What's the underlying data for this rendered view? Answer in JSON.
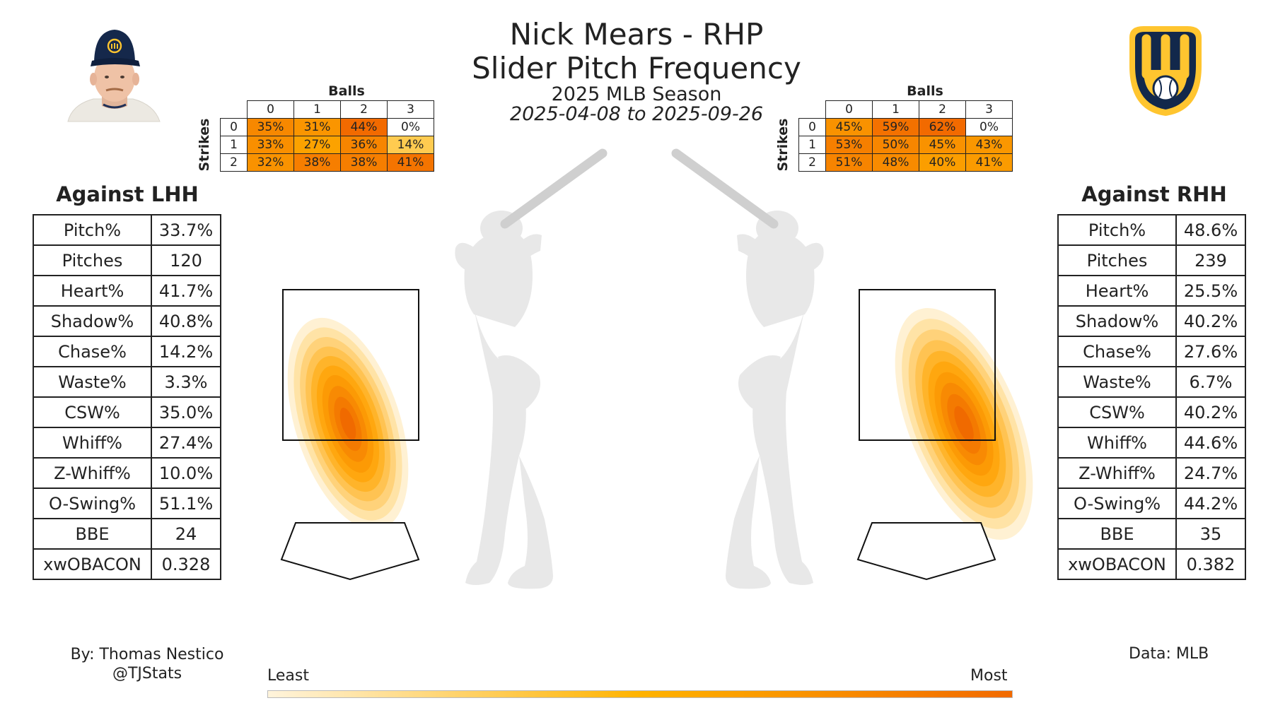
{
  "header": {
    "title_line1": "Nick Mears - RHP",
    "title_line2": "Slider Pitch Frequency",
    "season": "2025 MLB Season",
    "date_range": "2025-04-08 to 2025-09-26"
  },
  "colors": {
    "team_navy": "#12284b",
    "team_gold": "#ffc52f",
    "heat_low": "#fff4dc",
    "heat_mid": "#ffb300",
    "heat_high": "#f26a00",
    "silhouette": "#e8e8e8",
    "bat": "#cccccc"
  },
  "lhh": {
    "header": "Against LHH",
    "stats": [
      {
        "label": "Pitch%",
        "value": "33.7%"
      },
      {
        "label": "Pitches",
        "value": "120"
      },
      {
        "label": "Heart%",
        "value": "41.7%"
      },
      {
        "label": "Shadow%",
        "value": "40.8%"
      },
      {
        "label": "Chase%",
        "value": "14.2%"
      },
      {
        "label": "Waste%",
        "value": "3.3%"
      },
      {
        "label": "CSW%",
        "value": "35.0%"
      },
      {
        "label": "Whiff%",
        "value": "27.4%"
      },
      {
        "label": "Z-Whiff%",
        "value": "10.0%"
      },
      {
        "label": "O-Swing%",
        "value": "51.1%"
      },
      {
        "label": "BBE",
        "value": "24"
      },
      {
        "label": "xwOBACON",
        "value": "0.328"
      }
    ],
    "count_table": {
      "balls_label": "Balls",
      "strikes_label": "Strikes",
      "ball_headers": [
        "0",
        "1",
        "2",
        "3"
      ],
      "strike_headers": [
        "0",
        "1",
        "2"
      ],
      "rows": [
        {
          "text": [
            "35%",
            "31%",
            "44%",
            "0%"
          ],
          "pct": [
            35,
            31,
            44,
            0
          ]
        },
        {
          "text": [
            "33%",
            "27%",
            "36%",
            "14%"
          ],
          "pct": [
            33,
            27,
            36,
            14
          ]
        },
        {
          "text": [
            "32%",
            "38%",
            "38%",
            "41%"
          ],
          "pct": [
            32,
            38,
            38,
            41
          ]
        }
      ]
    }
  },
  "rhh": {
    "header": "Against RHH",
    "stats": [
      {
        "label": "Pitch%",
        "value": "48.6%"
      },
      {
        "label": "Pitches",
        "value": "239"
      },
      {
        "label": "Heart%",
        "value": "25.5%"
      },
      {
        "label": "Shadow%",
        "value": "40.2%"
      },
      {
        "label": "Chase%",
        "value": "27.6%"
      },
      {
        "label": "Waste%",
        "value": "6.7%"
      },
      {
        "label": "CSW%",
        "value": "40.2%"
      },
      {
        "label": "Whiff%",
        "value": "44.6%"
      },
      {
        "label": "Z-Whiff%",
        "value": "24.7%"
      },
      {
        "label": "O-Swing%",
        "value": "44.2%"
      },
      {
        "label": "BBE",
        "value": "35"
      },
      {
        "label": "xwOBACON",
        "value": "0.382"
      }
    ],
    "count_table": {
      "balls_label": "Balls",
      "strikes_label": "Strikes",
      "ball_headers": [
        "0",
        "1",
        "2",
        "3"
      ],
      "strike_headers": [
        "0",
        "1",
        "2"
      ],
      "rows": [
        {
          "text": [
            "45%",
            "59%",
            "62%",
            "0%"
          ],
          "pct": [
            45,
            59,
            62,
            0
          ]
        },
        {
          "text": [
            "53%",
            "50%",
            "45%",
            "43%"
          ],
          "pct": [
            53,
            50,
            45,
            43
          ]
        },
        {
          "text": [
            "51%",
            "48%",
            "40%",
            "41%"
          ],
          "pct": [
            51,
            48,
            40,
            41
          ]
        }
      ]
    }
  },
  "chart_data": {
    "type": "heatmap",
    "color_scale": {
      "low_label": "Least",
      "high_label": "Most"
    },
    "panels": [
      {
        "side": "LHH",
        "peak_location": "middle-left of zone, extending down-and-away below zone"
      },
      {
        "side": "RHH",
        "peak_location": "lower-right edge of zone, extending down-and-away below zone"
      }
    ]
  },
  "footer": {
    "credit_line1": "By: Thomas Nestico",
    "credit_line2": "@TJStats",
    "data_source": "Data: MLB"
  }
}
